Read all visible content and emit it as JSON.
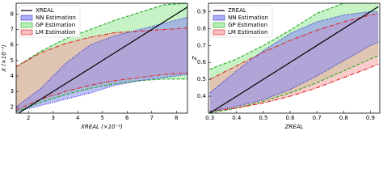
{
  "chart_data": [
    {
      "type": "band",
      "xlabel": "XREAL (×10⁻²)",
      "ylabel": "X (×10⁻²)",
      "x": [
        1.5,
        2.5,
        3.5,
        4.5,
        5.5,
        6.5,
        7.5,
        8.45
      ],
      "xlim": [
        1.5,
        8.45
      ],
      "ylim": [
        1.6,
        8.7
      ],
      "xticks": [
        2,
        3,
        4,
        5,
        6,
        7,
        8
      ],
      "yticks": [
        2,
        3,
        4,
        5,
        6,
        7,
        8
      ],
      "legend": "upper left",
      "series": [
        {
          "name": "XREAL",
          "color": "#000000",
          "values": [
            1.5,
            2.5,
            3.5,
            4.5,
            5.5,
            6.5,
            7.5,
            8.45
          ]
        },
        {
          "name": "NN Estimation",
          "color": "#3333cc",
          "fill": "#8a8af5",
          "dash": "1.2 1.5",
          "lower": [
            1.7,
            2.1,
            2.5,
            2.9,
            3.4,
            3.7,
            3.9,
            4.1
          ],
          "upper": [
            2.0,
            3.2,
            4.8,
            6.0,
            6.6,
            7.0,
            7.4,
            7.8
          ]
        },
        {
          "name": "GP Estimation",
          "color": "#22aa22",
          "fill": "#98e898",
          "dash": "4 2",
          "lower": [
            1.7,
            2.3,
            2.8,
            3.2,
            3.5,
            3.7,
            3.8,
            3.8
          ],
          "upper": [
            4.6,
            5.6,
            6.4,
            7.0,
            7.6,
            8.1,
            8.6,
            8.7
          ]
        },
        {
          "name": "LM Estimation",
          "color": "#dd2222",
          "fill": "#f5a3a3",
          "dash": "5 1.5 1 1.5",
          "lower": [
            1.8,
            2.5,
            3.0,
            3.4,
            3.7,
            3.9,
            4.1,
            4.2
          ],
          "upper": [
            4.6,
            5.5,
            6.1,
            6.5,
            6.8,
            6.9,
            7.0,
            7.1
          ]
        }
      ]
    },
    {
      "type": "band",
      "xlabel": "ZREAL",
      "ylabel": "Z",
      "x": [
        0.3,
        0.4,
        0.5,
        0.6,
        0.7,
        0.8,
        0.9,
        0.93
      ],
      "xlim": [
        0.295,
        0.935
      ],
      "ylim": [
        0.3,
        0.95
      ],
      "xticks": [
        0.3,
        0.4,
        0.5,
        0.6,
        0.7,
        0.8,
        0.9
      ],
      "yticks": [
        0.4,
        0.5,
        0.6,
        0.7,
        0.8,
        0.9
      ],
      "legend": "upper left",
      "series": [
        {
          "name": "ZREAL",
          "color": "#000000",
          "values": [
            0.3,
            0.4,
            0.5,
            0.6,
            0.7,
            0.8,
            0.9,
            0.93
          ]
        },
        {
          "name": "NN Estimation",
          "color": "#3333cc",
          "fill": "#8a8af5",
          "dash": "1.2 1.5",
          "lower": [
            0.31,
            0.34,
            0.38,
            0.44,
            0.52,
            0.61,
            0.7,
            0.72
          ],
          "upper": [
            0.42,
            0.55,
            0.67,
            0.77,
            0.84,
            0.88,
            0.9,
            0.9
          ]
        },
        {
          "name": "GP Estimation",
          "color": "#22aa22",
          "fill": "#98e898",
          "dash": "4 2",
          "lower": [
            0.3,
            0.33,
            0.37,
            0.42,
            0.48,
            0.55,
            0.62,
            0.64
          ],
          "upper": [
            0.56,
            0.62,
            0.7,
            0.79,
            0.89,
            0.95,
            0.95,
            0.95
          ]
        },
        {
          "name": "LM Estimation",
          "color": "#dd2222",
          "fill": "#f5a3a3",
          "dash": "5 1.5 1 1.5",
          "lower": [
            0.31,
            0.33,
            0.36,
            0.4,
            0.45,
            0.51,
            0.57,
            0.59
          ],
          "upper": [
            0.5,
            0.58,
            0.66,
            0.73,
            0.79,
            0.84,
            0.88,
            0.89
          ]
        }
      ]
    }
  ]
}
